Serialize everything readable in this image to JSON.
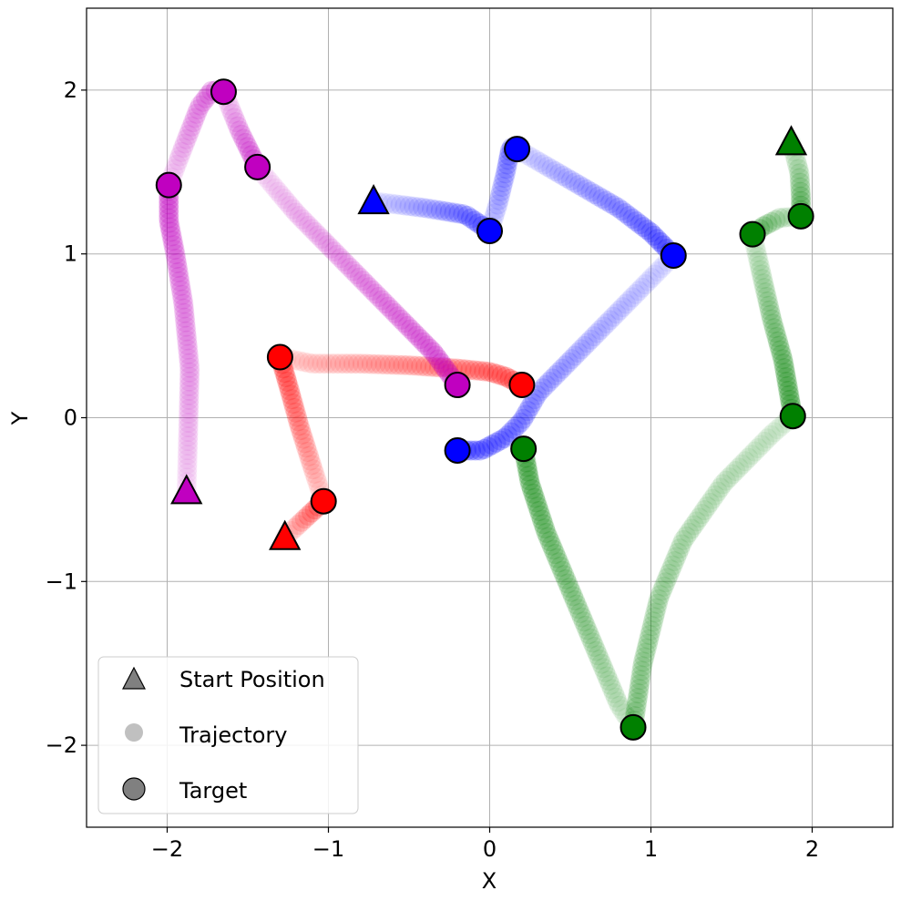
{
  "chart_data": {
    "type": "scatter",
    "title": "",
    "xlabel": "X",
    "ylabel": "Y",
    "xlim": [
      -2.5,
      2.5
    ],
    "ylim": [
      -2.5,
      2.5
    ],
    "x_ticks": [
      -2,
      -1,
      0,
      1,
      2
    ],
    "y_ticks": [
      -2,
      -1,
      0,
      1,
      2
    ],
    "x_tick_labels": [
      "−2",
      "−1",
      "0",
      "1",
      "2"
    ],
    "y_tick_labels": [
      "−2",
      "−1",
      "0",
      "1",
      "2"
    ],
    "grid": true,
    "legend_position": "lower-left",
    "legend": [
      {
        "label": "Start Position",
        "marker": "triangle"
      },
      {
        "label": "Trajectory",
        "marker": "dot"
      },
      {
        "label": "Target",
        "marker": "circle"
      }
    ],
    "series": [
      {
        "color": "#0000ff",
        "start": [
          -0.72,
          1.32
        ],
        "targets": [
          [
            0.0,
            1.14
          ],
          [
            0.17,
            1.64
          ],
          [
            1.14,
            0.99
          ],
          [
            -0.2,
            -0.2
          ]
        ],
        "waypoints": [
          [
            -0.72,
            1.32
          ],
          [
            -0.4,
            1.28
          ],
          [
            -0.15,
            1.24
          ],
          [
            0.0,
            1.14
          ],
          [
            0.05,
            1.3
          ],
          [
            0.1,
            1.5
          ],
          [
            0.13,
            1.65
          ],
          [
            0.17,
            1.64
          ],
          [
            0.45,
            1.48
          ],
          [
            0.8,
            1.28
          ],
          [
            1.0,
            1.13
          ],
          [
            1.14,
            0.99
          ],
          [
            0.85,
            0.7
          ],
          [
            0.55,
            0.4
          ],
          [
            0.3,
            0.15
          ],
          [
            0.2,
            -0.02
          ],
          [
            0.1,
            -0.12
          ],
          [
            -0.05,
            -0.2
          ],
          [
            -0.2,
            -0.2
          ]
        ]
      },
      {
        "color": "#008000",
        "start": [
          1.87,
          1.68
        ],
        "targets": [
          [
            1.93,
            1.23
          ],
          [
            1.63,
            1.12
          ],
          [
            1.88,
            0.01
          ],
          [
            0.21,
            -0.19
          ],
          [
            0.89,
            -1.89
          ]
        ],
        "waypoints": [
          [
            1.87,
            1.68
          ],
          [
            1.92,
            1.5
          ],
          [
            1.93,
            1.35
          ],
          [
            1.93,
            1.23
          ],
          [
            1.8,
            1.22
          ],
          [
            1.7,
            1.17
          ],
          [
            1.63,
            1.12
          ],
          [
            1.68,
            0.9
          ],
          [
            1.75,
            0.6
          ],
          [
            1.82,
            0.35
          ],
          [
            1.88,
            0.01
          ],
          [
            1.75,
            -0.1
          ],
          [
            1.45,
            -0.4
          ],
          [
            1.2,
            -0.75
          ],
          [
            1.05,
            -1.1
          ],
          [
            0.95,
            -1.5
          ],
          [
            0.89,
            -1.89
          ],
          [
            0.8,
            -1.75
          ],
          [
            0.65,
            -1.4
          ],
          [
            0.5,
            -1.05
          ],
          [
            0.35,
            -0.7
          ],
          [
            0.25,
            -0.4
          ],
          [
            0.21,
            -0.19
          ]
        ]
      },
      {
        "color": "#ff0000",
        "start": [
          -1.27,
          -0.73
        ],
        "targets": [
          [
            -1.03,
            -0.51
          ],
          [
            -1.3,
            0.37
          ],
          [
            0.2,
            0.2
          ]
        ],
        "waypoints": [
          [
            -1.27,
            -0.73
          ],
          [
            -1.15,
            -0.62
          ],
          [
            -1.03,
            -0.51
          ],
          [
            -1.1,
            -0.3
          ],
          [
            -1.18,
            -0.05
          ],
          [
            -1.25,
            0.2
          ],
          [
            -1.3,
            0.37
          ],
          [
            -1.1,
            0.33
          ],
          [
            -0.8,
            0.33
          ],
          [
            -0.5,
            0.32
          ],
          [
            -0.2,
            0.3
          ],
          [
            0.0,
            0.28
          ],
          [
            0.1,
            0.25
          ],
          [
            0.2,
            0.2
          ]
        ]
      },
      {
        "color": "#c000c0",
        "start": [
          -1.88,
          -0.45
        ],
        "targets": [
          [
            -1.99,
            1.42
          ],
          [
            -1.65,
            1.99
          ],
          [
            -1.44,
            1.53
          ],
          [
            -0.2,
            0.2
          ]
        ],
        "waypoints": [
          [
            -1.88,
            -0.45
          ],
          [
            -1.87,
            -0.1
          ],
          [
            -1.86,
            0.3
          ],
          [
            -1.9,
            0.7
          ],
          [
            -1.95,
            1.0
          ],
          [
            -1.99,
            1.2
          ],
          [
            -1.99,
            1.42
          ],
          [
            -1.9,
            1.65
          ],
          [
            -1.8,
            1.9
          ],
          [
            -1.72,
            2.0
          ],
          [
            -1.65,
            1.99
          ],
          [
            -1.55,
            1.75
          ],
          [
            -1.44,
            1.53
          ],
          [
            -1.2,
            1.25
          ],
          [
            -0.9,
            0.95
          ],
          [
            -0.6,
            0.65
          ],
          [
            -0.35,
            0.4
          ],
          [
            -0.2,
            0.2
          ]
        ]
      }
    ]
  }
}
